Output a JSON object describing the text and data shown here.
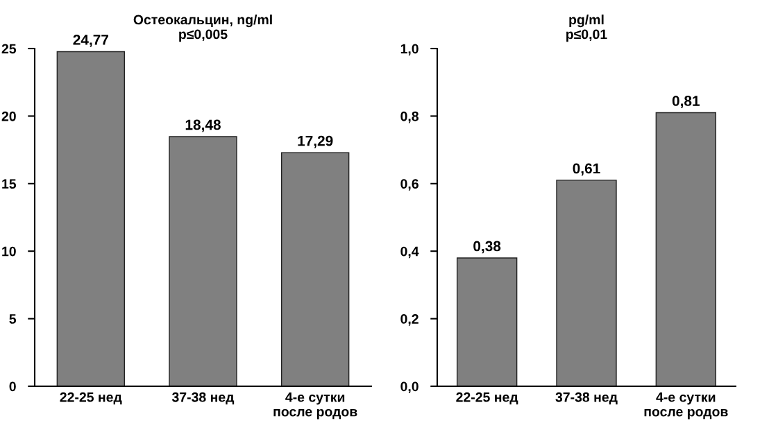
{
  "chart_data": [
    {
      "type": "bar",
      "title": "Остеокальцин, ng/ml\np≤0,005",
      "categories": [
        "22-25 нед",
        "37-38 нед",
        "4-е сутки\nпосле родов"
      ],
      "values": [
        24.77,
        18.48,
        17.29
      ],
      "value_labels": [
        "24,77",
        "18,48",
        "17,29"
      ],
      "color": "#808080",
      "ylim": [
        0,
        25
      ],
      "yticks": [
        0,
        5,
        10,
        15,
        20,
        25
      ],
      "grid": false,
      "legend": false
    },
    {
      "type": "bar",
      "title": "pg/ml\np≤0,01",
      "categories": [
        "22-25 нед",
        "37-38 нед",
        "4-е сутки\nпосле родов"
      ],
      "values": [
        0.38,
        0.61,
        0.81
      ],
      "value_labels": [
        "0,38",
        "0,61",
        "0,81"
      ],
      "color": "#808080",
      "ylim": [
        0,
        1
      ],
      "yticks": [
        {
          "value": 0,
          "label": "0,0"
        },
        {
          "value": 0.2,
          "label": "0,2"
        },
        {
          "value": 0.4,
          "label": "0,4"
        },
        {
          "value": 0.6,
          "label": "0,6"
        },
        {
          "value": 0.8,
          "label": "0,8"
        },
        {
          "value": 1,
          "label": "1,0"
        }
      ],
      "grid": false,
      "legend": false
    }
  ]
}
